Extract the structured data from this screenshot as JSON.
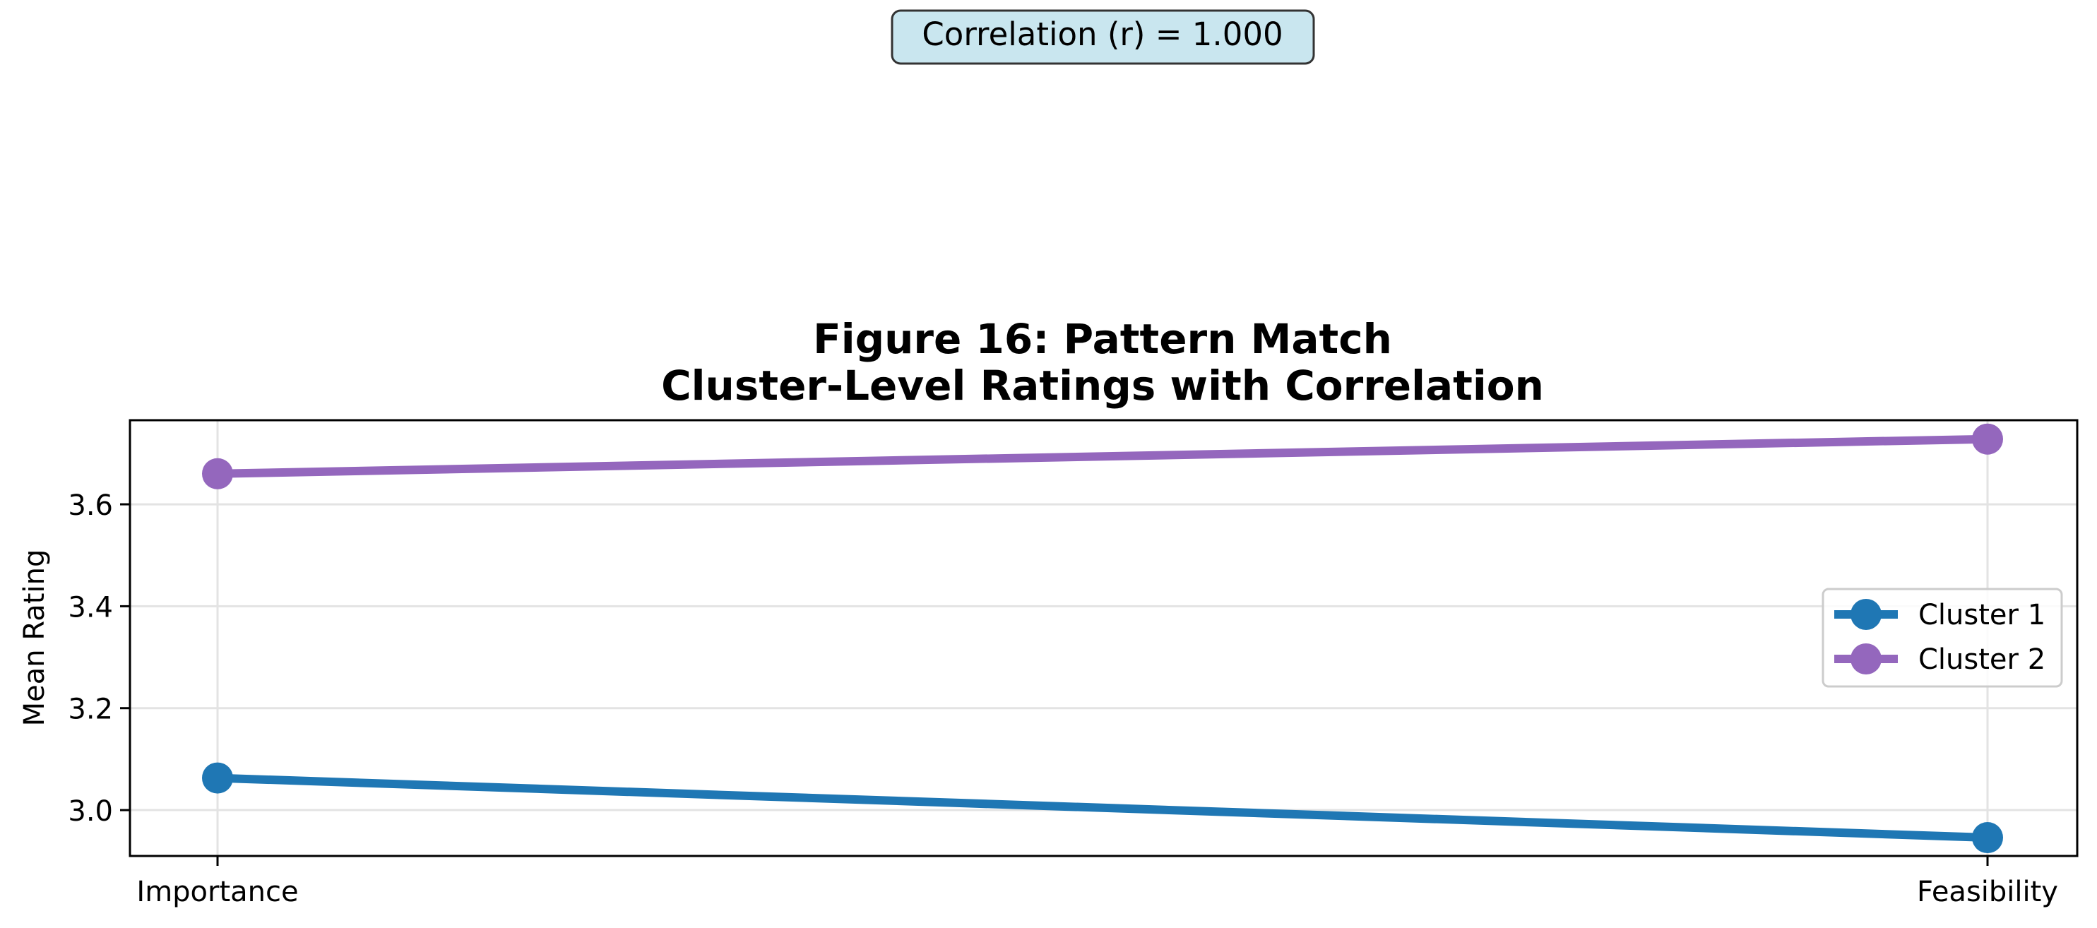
{
  "chart_data": {
    "type": "line",
    "title": [
      "Figure 16: Pattern Match",
      "Cluster-Level Ratings with Correlation"
    ],
    "annotation": "Correlation (r) = 1.000",
    "categories": [
      "Importance",
      "Feasibility"
    ],
    "xlabel": "",
    "ylabel": "Mean Rating",
    "yticks": [
      3.0,
      3.2,
      3.4,
      3.6
    ],
    "ylim": [
      2.91,
      3.765
    ],
    "grid": true,
    "legend_position": "center-right",
    "series": [
      {
        "name": "Cluster 1",
        "values": [
          3.063,
          2.946
        ],
        "color": "#1f77b4"
      },
      {
        "name": "Cluster 2",
        "values": [
          3.66,
          3.728
        ],
        "color": "#9467bd"
      }
    ]
  }
}
